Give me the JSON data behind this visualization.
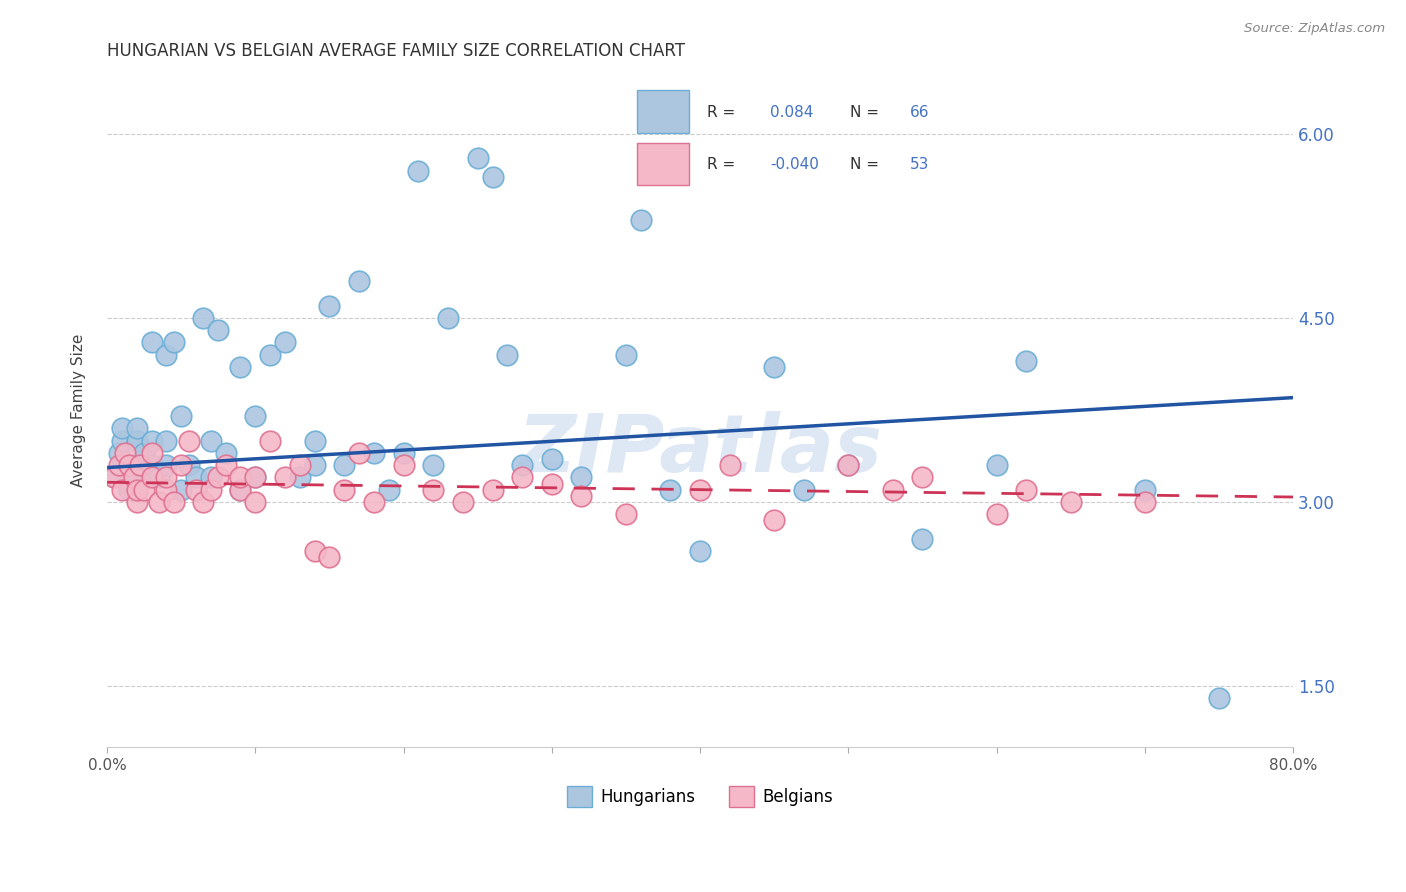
{
  "title": "HUNGARIAN VS BELGIAN AVERAGE FAMILY SIZE CORRELATION CHART",
  "source": "Source: ZipAtlas.com",
  "ylabel": "Average Family Size",
  "xlim": [
    0.0,
    0.8
  ],
  "ylim": [
    1.0,
    6.5
  ],
  "yticks": [
    1.5,
    3.0,
    4.5,
    6.0
  ],
  "xticks": [
    0.0,
    0.1,
    0.2,
    0.3,
    0.4,
    0.5,
    0.6,
    0.7,
    0.8
  ],
  "xticklabels": [
    "0.0%",
    "",
    "",
    "",
    "",
    "",
    "",
    "",
    "80.0%"
  ],
  "title_fontsize": 12,
  "axis_label_fontsize": 11,
  "tick_fontsize": 11,
  "right_tick_color": "#4472c4",
  "legend_R_hungarian": "0.084",
  "legend_N_hungarian": "66",
  "legend_R_belgian": "-0.040",
  "legend_N_belgian": "53",
  "hungarian_color": "#adc6e0",
  "hungarian_edge": "#6baed6",
  "belgian_color": "#f4b8c8",
  "belgian_edge": "#e07090",
  "trend_hungarian_color": "#2155a3",
  "trend_belgian_color": "#cc3355",
  "watermark_color": "#c8d8ee",
  "hungarian_x": [
    0.005,
    0.008,
    0.01,
    0.01,
    0.01,
    0.015,
    0.02,
    0.02,
    0.02,
    0.02,
    0.02,
    0.025,
    0.03,
    0.03,
    0.03,
    0.03,
    0.035,
    0.04,
    0.04,
    0.04,
    0.045,
    0.05,
    0.05,
    0.055,
    0.06,
    0.065,
    0.07,
    0.07,
    0.075,
    0.08,
    0.09,
    0.09,
    0.1,
    0.1,
    0.11,
    0.12,
    0.13,
    0.14,
    0.14,
    0.15,
    0.16,
    0.17,
    0.18,
    0.19,
    0.2,
    0.21,
    0.22,
    0.23,
    0.25,
    0.26,
    0.27,
    0.28,
    0.3,
    0.32,
    0.35,
    0.36,
    0.38,
    0.4,
    0.45,
    0.47,
    0.5,
    0.55,
    0.6,
    0.62,
    0.7,
    0.75
  ],
  "hungarian_y": [
    3.2,
    3.4,
    3.5,
    3.6,
    3.3,
    3.1,
    3.2,
    3.3,
    3.5,
    3.5,
    3.6,
    3.4,
    3.2,
    3.3,
    3.5,
    4.3,
    3.2,
    3.3,
    3.5,
    4.2,
    4.3,
    3.1,
    3.7,
    3.3,
    3.2,
    4.5,
    3.2,
    3.5,
    4.4,
    3.4,
    3.1,
    4.1,
    3.2,
    3.7,
    4.2,
    4.3,
    3.2,
    3.3,
    3.5,
    4.6,
    3.3,
    4.8,
    3.4,
    3.1,
    3.4,
    5.7,
    3.3,
    4.5,
    5.8,
    5.65,
    4.2,
    3.3,
    3.35,
    3.2,
    4.2,
    5.3,
    3.1,
    2.6,
    4.1,
    3.1,
    3.3,
    2.7,
    3.3,
    4.15,
    3.1,
    1.4
  ],
  "belgian_x": [
    0.005,
    0.008,
    0.01,
    0.012,
    0.015,
    0.018,
    0.02,
    0.02,
    0.022,
    0.025,
    0.03,
    0.03,
    0.035,
    0.04,
    0.04,
    0.045,
    0.05,
    0.055,
    0.06,
    0.065,
    0.07,
    0.075,
    0.08,
    0.09,
    0.09,
    0.1,
    0.1,
    0.11,
    0.12,
    0.13,
    0.14,
    0.15,
    0.16,
    0.17,
    0.18,
    0.2,
    0.22,
    0.24,
    0.26,
    0.28,
    0.3,
    0.32,
    0.35,
    0.4,
    0.42,
    0.45,
    0.5,
    0.53,
    0.55,
    0.6,
    0.62,
    0.65,
    0.7
  ],
  "belgian_y": [
    3.2,
    3.3,
    3.1,
    3.4,
    3.3,
    3.2,
    3.0,
    3.1,
    3.3,
    3.1,
    3.2,
    3.4,
    3.0,
    3.1,
    3.2,
    3.0,
    3.3,
    3.5,
    3.1,
    3.0,
    3.1,
    3.2,
    3.3,
    3.1,
    3.2,
    3.0,
    3.2,
    3.5,
    3.2,
    3.3,
    2.6,
    2.55,
    3.1,
    3.4,
    3.0,
    3.3,
    3.1,
    3.0,
    3.1,
    3.2,
    3.15,
    3.05,
    2.9,
    3.1,
    3.3,
    2.85,
    3.3,
    3.1,
    3.2,
    2.9,
    3.1,
    3.0,
    3.0
  ]
}
